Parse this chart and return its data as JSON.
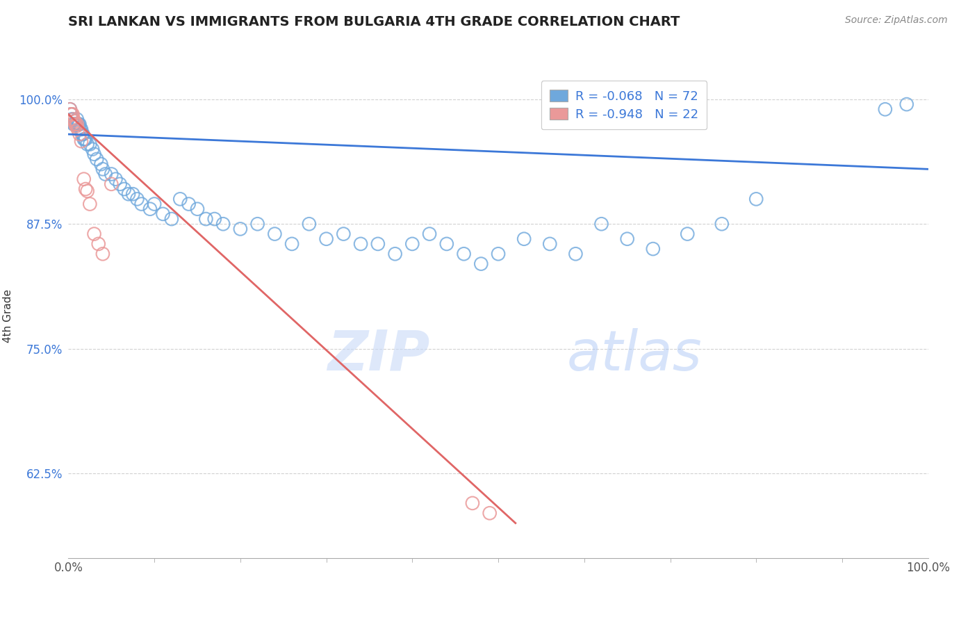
{
  "title": "SRI LANKAN VS IMMIGRANTS FROM BULGARIA 4TH GRADE CORRELATION CHART",
  "source": "Source: ZipAtlas.com",
  "ylabel": "4th Grade",
  "watermark_zip": "ZIP",
  "watermark_atlas": "atlas",
  "xlim": [
    0.0,
    1.0
  ],
  "ylim": [
    0.54,
    1.025
  ],
  "yticks": [
    0.625,
    0.75,
    0.875,
    1.0
  ],
  "ytick_labels": [
    "62.5%",
    "75.0%",
    "87.5%",
    "100.0%"
  ],
  "xtick_left": "0.0%",
  "xtick_right": "100.0%",
  "blue_R": "-0.068",
  "blue_N": "72",
  "pink_R": "-0.948",
  "pink_N": "22",
  "blue_color": "#6fa8dc",
  "pink_color": "#ea9999",
  "blue_line_color": "#3c78d8",
  "pink_line_color": "#e06666",
  "axis_color": "#3c78d8",
  "blue_scatter_x": [
    0.002,
    0.003,
    0.004,
    0.005,
    0.006,
    0.007,
    0.008,
    0.009,
    0.01,
    0.011,
    0.012,
    0.013,
    0.014,
    0.015,
    0.016,
    0.017,
    0.018,
    0.019,
    0.02,
    0.022,
    0.025,
    0.028,
    0.03,
    0.033,
    0.038,
    0.04,
    0.043,
    0.05,
    0.055,
    0.06,
    0.065,
    0.07,
    0.075,
    0.08,
    0.085,
    0.095,
    0.1,
    0.11,
    0.12,
    0.13,
    0.14,
    0.15,
    0.16,
    0.17,
    0.18,
    0.2,
    0.22,
    0.24,
    0.26,
    0.28,
    0.3,
    0.32,
    0.34,
    0.36,
    0.38,
    0.4,
    0.42,
    0.44,
    0.46,
    0.48,
    0.5,
    0.53,
    0.56,
    0.59,
    0.62,
    0.65,
    0.68,
    0.72,
    0.76,
    0.8,
    0.95,
    0.975
  ],
  "blue_scatter_y": [
    0.99,
    0.985,
    0.98,
    0.98,
    0.975,
    0.975,
    0.975,
    0.975,
    0.98,
    0.975,
    0.975,
    0.975,
    0.97,
    0.97,
    0.965,
    0.965,
    0.96,
    0.96,
    0.96,
    0.955,
    0.955,
    0.95,
    0.945,
    0.94,
    0.935,
    0.93,
    0.925,
    0.925,
    0.92,
    0.915,
    0.91,
    0.905,
    0.905,
    0.9,
    0.895,
    0.89,
    0.895,
    0.885,
    0.88,
    0.9,
    0.895,
    0.89,
    0.88,
    0.88,
    0.875,
    0.87,
    0.875,
    0.865,
    0.855,
    0.875,
    0.86,
    0.865,
    0.855,
    0.855,
    0.845,
    0.855,
    0.865,
    0.855,
    0.845,
    0.835,
    0.845,
    0.86,
    0.855,
    0.845,
    0.875,
    0.86,
    0.85,
    0.865,
    0.875,
    0.9,
    0.99,
    0.995
  ],
  "pink_scatter_x": [
    0.002,
    0.003,
    0.004,
    0.005,
    0.006,
    0.007,
    0.008,
    0.009,
    0.01,
    0.011,
    0.013,
    0.015,
    0.018,
    0.02,
    0.022,
    0.025,
    0.03,
    0.035,
    0.04,
    0.05,
    0.47,
    0.49
  ],
  "pink_scatter_y": [
    0.99,
    0.985,
    0.985,
    0.985,
    0.98,
    0.978,
    0.975,
    0.973,
    0.975,
    0.97,
    0.965,
    0.958,
    0.92,
    0.91,
    0.908,
    0.895,
    0.865,
    0.855,
    0.845,
    0.915,
    0.595,
    0.585
  ],
  "blue_trend_x": [
    0.0,
    1.0
  ],
  "blue_trend_y": [
    0.965,
    0.93
  ],
  "pink_trend_x": [
    0.0,
    0.52
  ],
  "pink_trend_y": [
    0.985,
    0.575
  ]
}
